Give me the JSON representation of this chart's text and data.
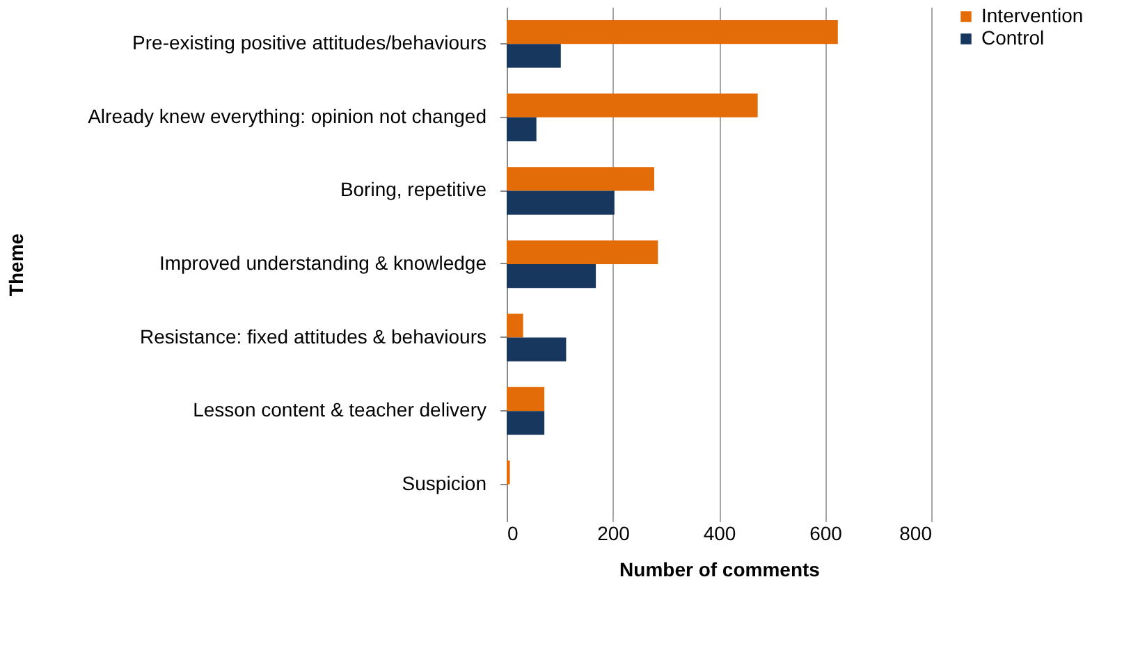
{
  "chart_data": {
    "type": "bar",
    "orientation": "horizontal",
    "xlabel": "Number of comments",
    "ylabel": "Theme",
    "categories": [
      "Pre-existing positive attitudes/behaviours",
      "Already  knew everything: opinion not changed",
      "Boring, repetitive",
      "Improved understanding & knowledge",
      "Resistance: fixed attitudes & behaviours",
      "Lesson content & teacher delivery",
      "Suspicion"
    ],
    "series": [
      {
        "name": "Intervention",
        "color": "#e36c09",
        "values": [
          624,
          473,
          278,
          285,
          31,
          71,
          6
        ]
      },
      {
        "name": "Control",
        "color": "#17375e",
        "values": [
          102,
          56,
          203,
          168,
          112,
          71,
          0
        ]
      }
    ],
    "xlim": [
      0,
      800
    ],
    "xticks": [
      0,
      200,
      400,
      600,
      800
    ],
    "grid": "x",
    "legend": "right"
  }
}
